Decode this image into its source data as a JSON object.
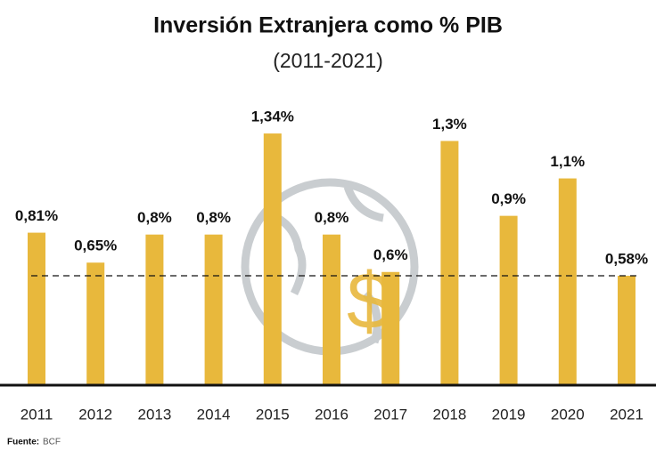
{
  "chart_data": {
    "type": "bar",
    "title": "Inversión Extranjera como % PIB",
    "subtitle": "(2011-2021)",
    "categories": [
      "2011",
      "2012",
      "2013",
      "2014",
      "2015",
      "2016",
      "2017",
      "2018",
      "2019",
      "2020",
      "2021"
    ],
    "values": [
      0.81,
      0.65,
      0.8,
      0.8,
      1.34,
      0.8,
      0.6,
      1.3,
      0.9,
      1.1,
      0.58
    ],
    "value_labels": [
      "0,81%",
      "0,65%",
      "0,8%",
      "0,8%",
      "1,34%",
      "0,8%",
      "0,6%",
      "1,3%",
      "0,9%",
      "1,1%",
      "0,58%"
    ],
    "color": "#e8b83c",
    "reference_line": 0.58,
    "source_label": "Fuente:",
    "source": "BCF"
  }
}
